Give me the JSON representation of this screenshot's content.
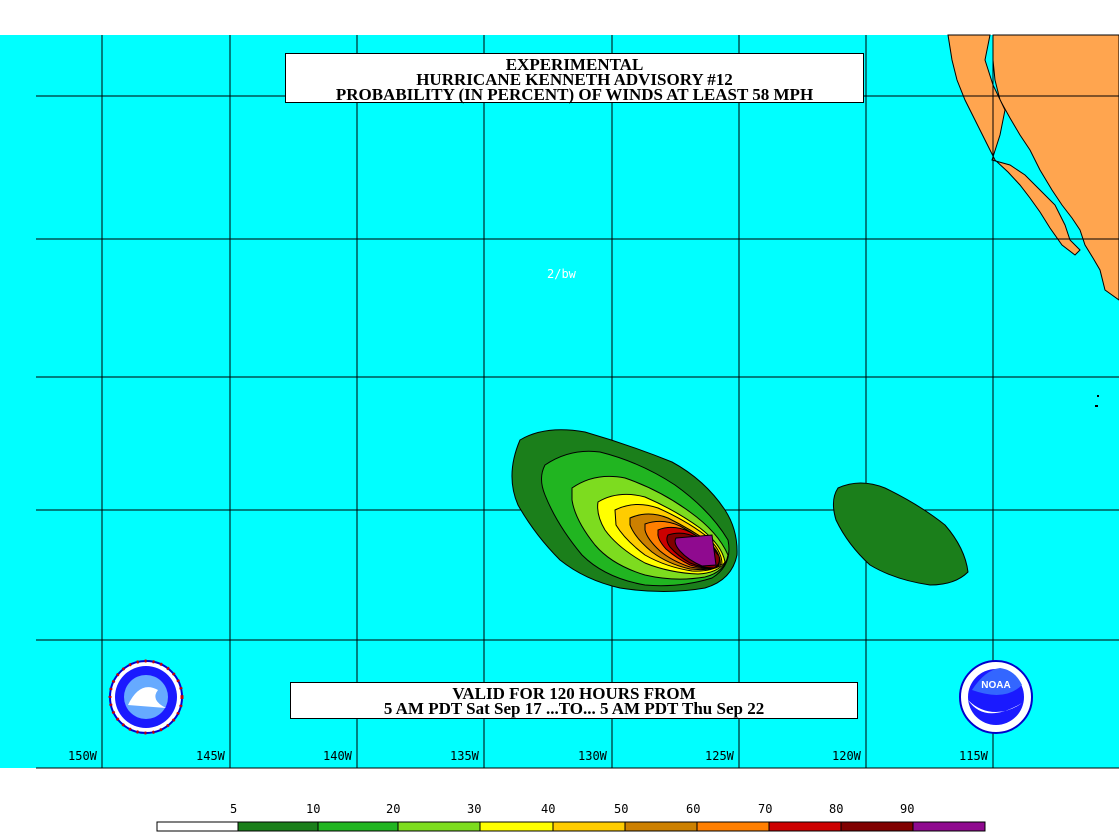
{
  "title": {
    "line1": "EXPERIMENTAL",
    "line2": "HURRICANE KENNETH ADVISORY #12",
    "line3": "PROBABILITY (IN PERCENT) OF WINDS AT LEAST 58 MPH"
  },
  "annotation": "2/bw",
  "valid": {
    "line1": "VALID FOR 120 HOURS FROM",
    "line2": "5 AM PDT Sat Sep 17 ...TO... 5 AM PDT Thu Sep 22"
  },
  "longitude_labels": [
    "150W",
    "145W",
    "140W",
    "135W",
    "130W",
    "125W",
    "120W",
    "115W"
  ],
  "legend": {
    "labels": [
      "5",
      "10",
      "20",
      "30",
      "40",
      "50",
      "60",
      "70",
      "80",
      "90"
    ],
    "colors": [
      "#ffffff",
      "#1b7f1b",
      "#21b521",
      "#7ddc1f",
      "#ffff00",
      "#ffcc00",
      "#cc8000",
      "#ff7f00",
      "#cc0000",
      "#800000",
      "#8f0a8f"
    ]
  },
  "colors": {
    "ocean": "#00ffff",
    "land": "#ffa54f",
    "grid": "#000000"
  },
  "logos": [
    "nws-logo",
    "noaa-logo"
  ]
}
